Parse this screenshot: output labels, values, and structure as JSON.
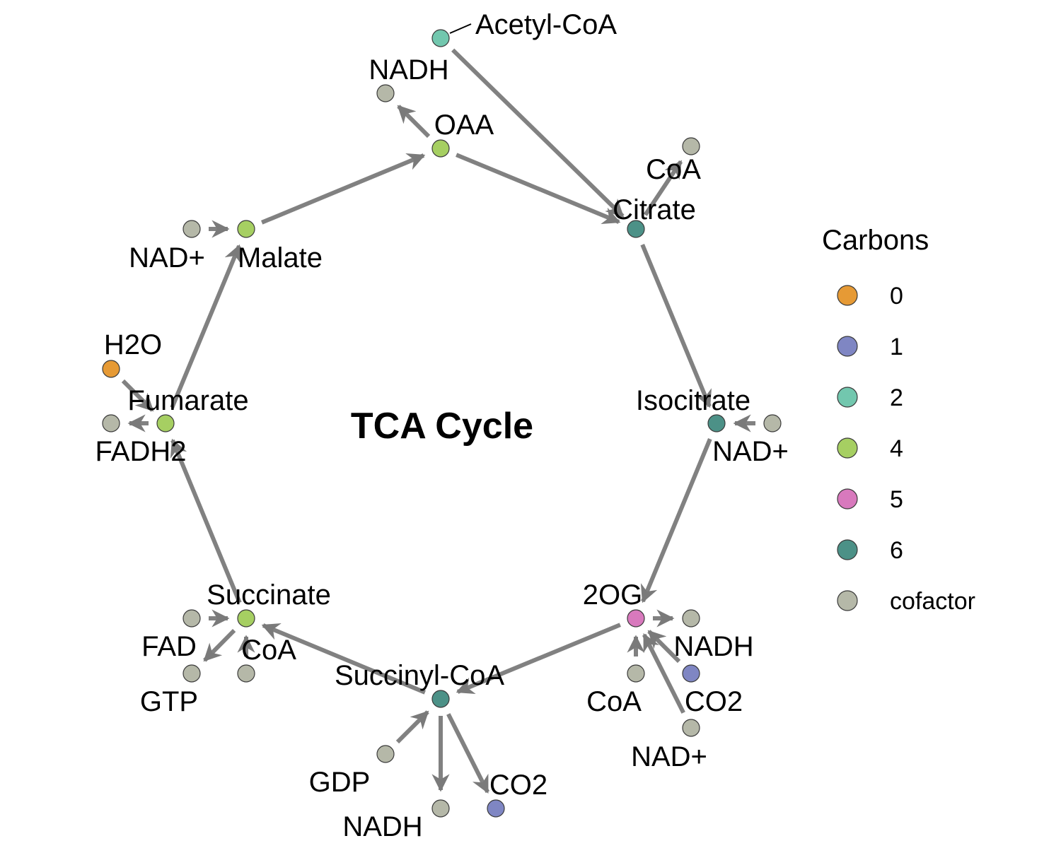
{
  "title": "TCA Cycle",
  "legend": {
    "title": "Carbons",
    "items": [
      {
        "label": "0",
        "color": "#E69A35"
      },
      {
        "label": "1",
        "color": "#7F86C3"
      },
      {
        "label": "2",
        "color": "#72C7AE"
      },
      {
        "label": "4",
        "color": "#A6CF62"
      },
      {
        "label": "5",
        "color": "#D879BD"
      },
      {
        "label": "6",
        "color": "#4C9187"
      },
      {
        "label": "cofactor",
        "color": "#B5B8A8"
      }
    ]
  },
  "nodes": [
    {
      "id": "acetylcoa",
      "label": "Acetyl-CoA",
      "carbons": "2"
    },
    {
      "id": "nadh_top",
      "label": "NADH",
      "carbons": "cofactor"
    },
    {
      "id": "oaa",
      "label": "OAA",
      "carbons": "4"
    },
    {
      "id": "coa_cit",
      "label": "CoA",
      "carbons": "cofactor"
    },
    {
      "id": "citrate",
      "label": "Citrate",
      "carbons": "6"
    },
    {
      "id": "malate",
      "label": "Malate",
      "carbons": "4"
    },
    {
      "id": "nad_mal",
      "label": "NAD+",
      "carbons": "cofactor"
    },
    {
      "id": "h2o",
      "label": "H2O",
      "carbons": "0"
    },
    {
      "id": "fumarate",
      "label": "Fumarate",
      "carbons": "4"
    },
    {
      "id": "fadh2",
      "label": "FADH2",
      "carbons": "cofactor"
    },
    {
      "id": "isocitrate",
      "label": "Isocitrate",
      "carbons": "6"
    },
    {
      "id": "nad_iso",
      "label": "NAD+",
      "carbons": "cofactor"
    },
    {
      "id": "succinate",
      "label": "Succinate",
      "carbons": "4"
    },
    {
      "id": "fad",
      "label": "FAD",
      "carbons": "cofactor"
    },
    {
      "id": "coa_succ",
      "label": "CoA",
      "carbons": "cofactor"
    },
    {
      "id": "gtp",
      "label": "GTP",
      "carbons": "cofactor"
    },
    {
      "id": "og",
      "label": "2OG",
      "carbons": "5"
    },
    {
      "id": "nadh_og",
      "label": "NADH",
      "carbons": "cofactor"
    },
    {
      "id": "co2_og",
      "label": "CO2",
      "carbons": "1"
    },
    {
      "id": "coa_og",
      "label": "CoA",
      "carbons": "cofactor"
    },
    {
      "id": "nad_og",
      "label": "NAD+",
      "carbons": "cofactor"
    },
    {
      "id": "succinylcoa",
      "label": "Succinyl-CoA",
      "carbons": "6"
    },
    {
      "id": "gdp",
      "label": "GDP",
      "carbons": "cofactor"
    },
    {
      "id": "nadh_sc",
      "label": "NADH",
      "carbons": "cofactor"
    },
    {
      "id": "co2_sc",
      "label": "CO2",
      "carbons": "1"
    }
  ],
  "edges": [
    {
      "from": "acetylcoa",
      "to": "citrate"
    },
    {
      "from": "oaa",
      "to": "citrate"
    },
    {
      "from": "oaa",
      "to": "nadh_top"
    },
    {
      "from": "citrate",
      "to": "coa_cit"
    },
    {
      "from": "citrate",
      "to": "isocitrate"
    },
    {
      "from": "nad_iso",
      "to": "isocitrate"
    },
    {
      "from": "isocitrate",
      "to": "og"
    },
    {
      "from": "og",
      "to": "nadh_og"
    },
    {
      "from": "co2_og",
      "to": "og"
    },
    {
      "from": "coa_og",
      "to": "og"
    },
    {
      "from": "nad_og",
      "to": "og"
    },
    {
      "from": "og",
      "to": "succinylcoa"
    },
    {
      "from": "gdp",
      "to": "succinylcoa"
    },
    {
      "from": "succinylcoa",
      "to": "nadh_sc"
    },
    {
      "from": "succinylcoa",
      "to": "co2_sc"
    },
    {
      "from": "succinylcoa",
      "to": "succinate"
    },
    {
      "from": "fad",
      "to": "succinate"
    },
    {
      "from": "coa_succ",
      "to": "succinate"
    },
    {
      "from": "succinate",
      "to": "gtp"
    },
    {
      "from": "succinate",
      "to": "fumarate"
    },
    {
      "from": "fumarate",
      "to": "fadh2"
    },
    {
      "from": "h2o",
      "to": "fumarate"
    },
    {
      "from": "fumarate",
      "to": "malate"
    },
    {
      "from": "nad_mal",
      "to": "malate"
    },
    {
      "from": "malate",
      "to": "oaa"
    }
  ]
}
